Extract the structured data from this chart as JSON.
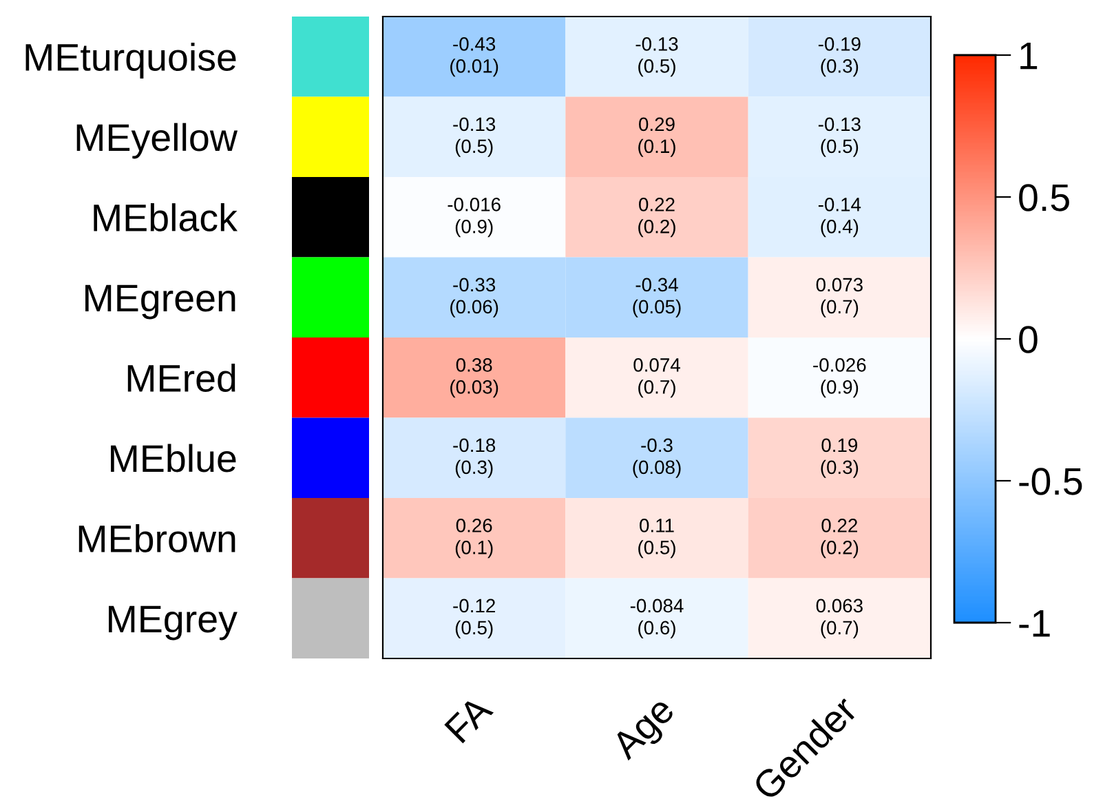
{
  "chart_data": {
    "type": "heatmap",
    "categories": [
      "FA",
      "Age",
      "Gender"
    ],
    "y_categories": [
      "MEturquoise",
      "MEyellow",
      "MEblack",
      "MEgreen",
      "MEred",
      "MEblue",
      "MEbrown",
      "MEgrey"
    ],
    "cells": [
      [
        -0.43,
        -0.13,
        -0.19
      ],
      [
        -0.13,
        0.29,
        -0.13
      ],
      [
        -0.016,
        0.22,
        -0.14
      ],
      [
        -0.33,
        -0.34,
        0.073
      ],
      [
        0.38,
        0.074,
        -0.026
      ],
      [
        -0.18,
        -0.3,
        0.19
      ],
      [
        0.26,
        0.11,
        0.22
      ],
      [
        -0.12,
        -0.084,
        0.063
      ]
    ],
    "cell_labels": [
      [
        "-0.43\n(0.01)",
        "-0.13\n(0.5)",
        "-0.19\n(0.3)"
      ],
      [
        "-0.13\n(0.5)",
        "0.29\n(0.1)",
        "-0.13\n(0.5)"
      ],
      [
        "-0.016\n(0.9)",
        "0.22\n(0.2)",
        "-0.14\n(0.4)"
      ],
      [
        "-0.33\n(0.06)",
        "-0.34\n(0.05)",
        "0.073\n(0.7)"
      ],
      [
        "0.38\n(0.03)",
        "0.074\n(0.7)",
        "-0.026\n(0.9)"
      ],
      [
        "-0.18\n(0.3)",
        "-0.3\n(0.08)",
        "0.19\n(0.3)"
      ],
      [
        "0.26\n(0.1)",
        "0.11\n(0.5)",
        "0.22\n(0.2)"
      ],
      [
        "-0.12\n(0.5)",
        "-0.084\n(0.6)",
        "0.063\n(0.7)"
      ]
    ],
    "clim": [
      -1,
      1
    ],
    "cticks": [
      -1,
      -0.5,
      0,
      0.5,
      1
    ]
  }
}
